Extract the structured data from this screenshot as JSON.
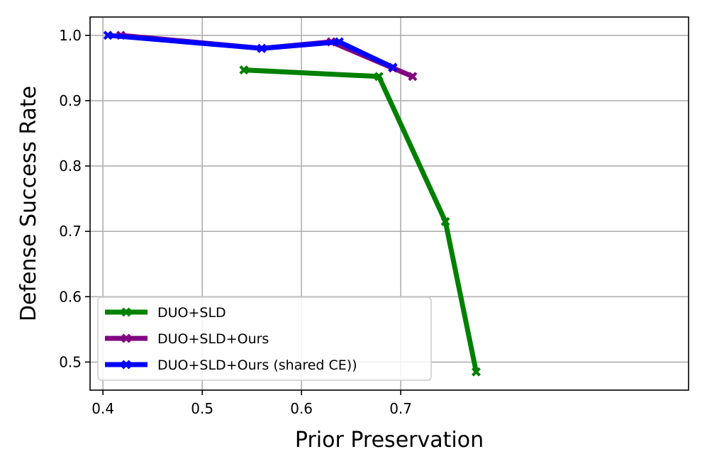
{
  "chart_data": {
    "type": "line",
    "title": "",
    "xlabel": "Prior Preservation",
    "ylabel": "Defense Success Rate",
    "xlim": [
      0.387,
      0.99
    ],
    "ylim": [
      0.457,
      1.028
    ],
    "xticks": [
      0.4,
      0.5,
      0.6,
      0.7
    ],
    "xtick_labels": [
      "0.4",
      "0.5",
      "0.6",
      "0.7"
    ],
    "yticks": [
      0.5,
      0.6,
      0.7,
      0.8,
      0.9,
      1.0
    ],
    "ytick_labels": [
      "0.5",
      "0.6",
      "0.7",
      "0.8",
      "0.9",
      "1.0"
    ],
    "grid": true,
    "legend_position": "lower-left",
    "marker": "X",
    "series": [
      {
        "name": "DUO+SLD",
        "color": "#008000",
        "x": [
          0.542,
          0.678,
          0.745,
          0.776
        ],
        "y": [
          0.947,
          0.937,
          0.715,
          0.485
        ]
      },
      {
        "name": "DUO+SLD+Ours",
        "color": "#800080",
        "x": [
          0.418,
          0.56,
          0.63,
          0.692,
          0.712
        ],
        "y": [
          1.0,
          0.98,
          0.99,
          0.95,
          0.937
        ]
      },
      {
        "name": "DUO+SLD+Ours (shared CE))",
        "color": "#0000ff",
        "x": [
          0.405,
          0.56,
          0.638,
          0.692
        ],
        "y": [
          1.0,
          0.98,
          0.99,
          0.951
        ]
      }
    ]
  }
}
